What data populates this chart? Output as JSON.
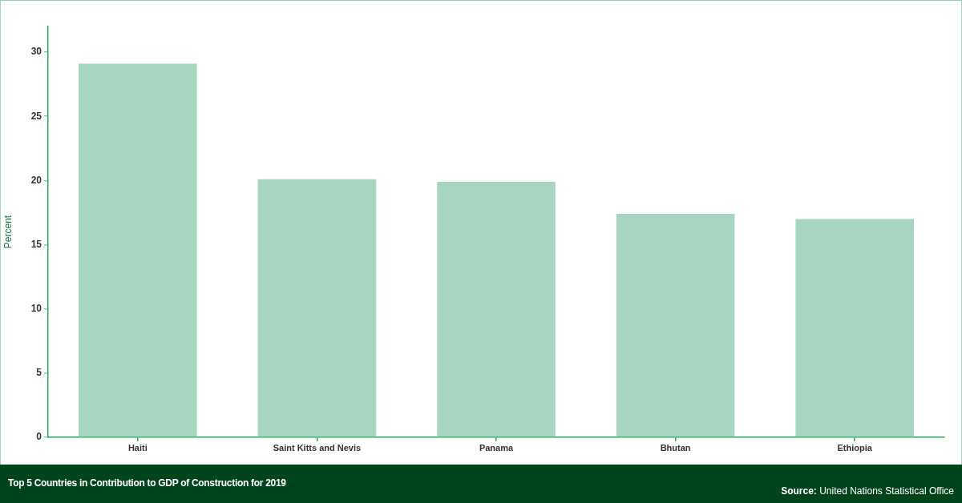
{
  "chart_data": {
    "type": "bar",
    "title": "Top 5 Countries in Contribution to GDP of Construction for 2019",
    "ylabel": "Percent",
    "categories": [
      "Haiti",
      "Saint Kitts and Nevis",
      "Panama",
      "Bhutan",
      "Ethiopia"
    ],
    "values": [
      29.1,
      20.1,
      19.9,
      17.4,
      17.0
    ],
    "color": "#a8d5c0",
    "ylim": [
      0,
      32
    ],
    "yticks": [
      0,
      5,
      10,
      15,
      20,
      25,
      30
    ],
    "annotations": [
      "Source: United Nations Statistical Office"
    ]
  }
}
